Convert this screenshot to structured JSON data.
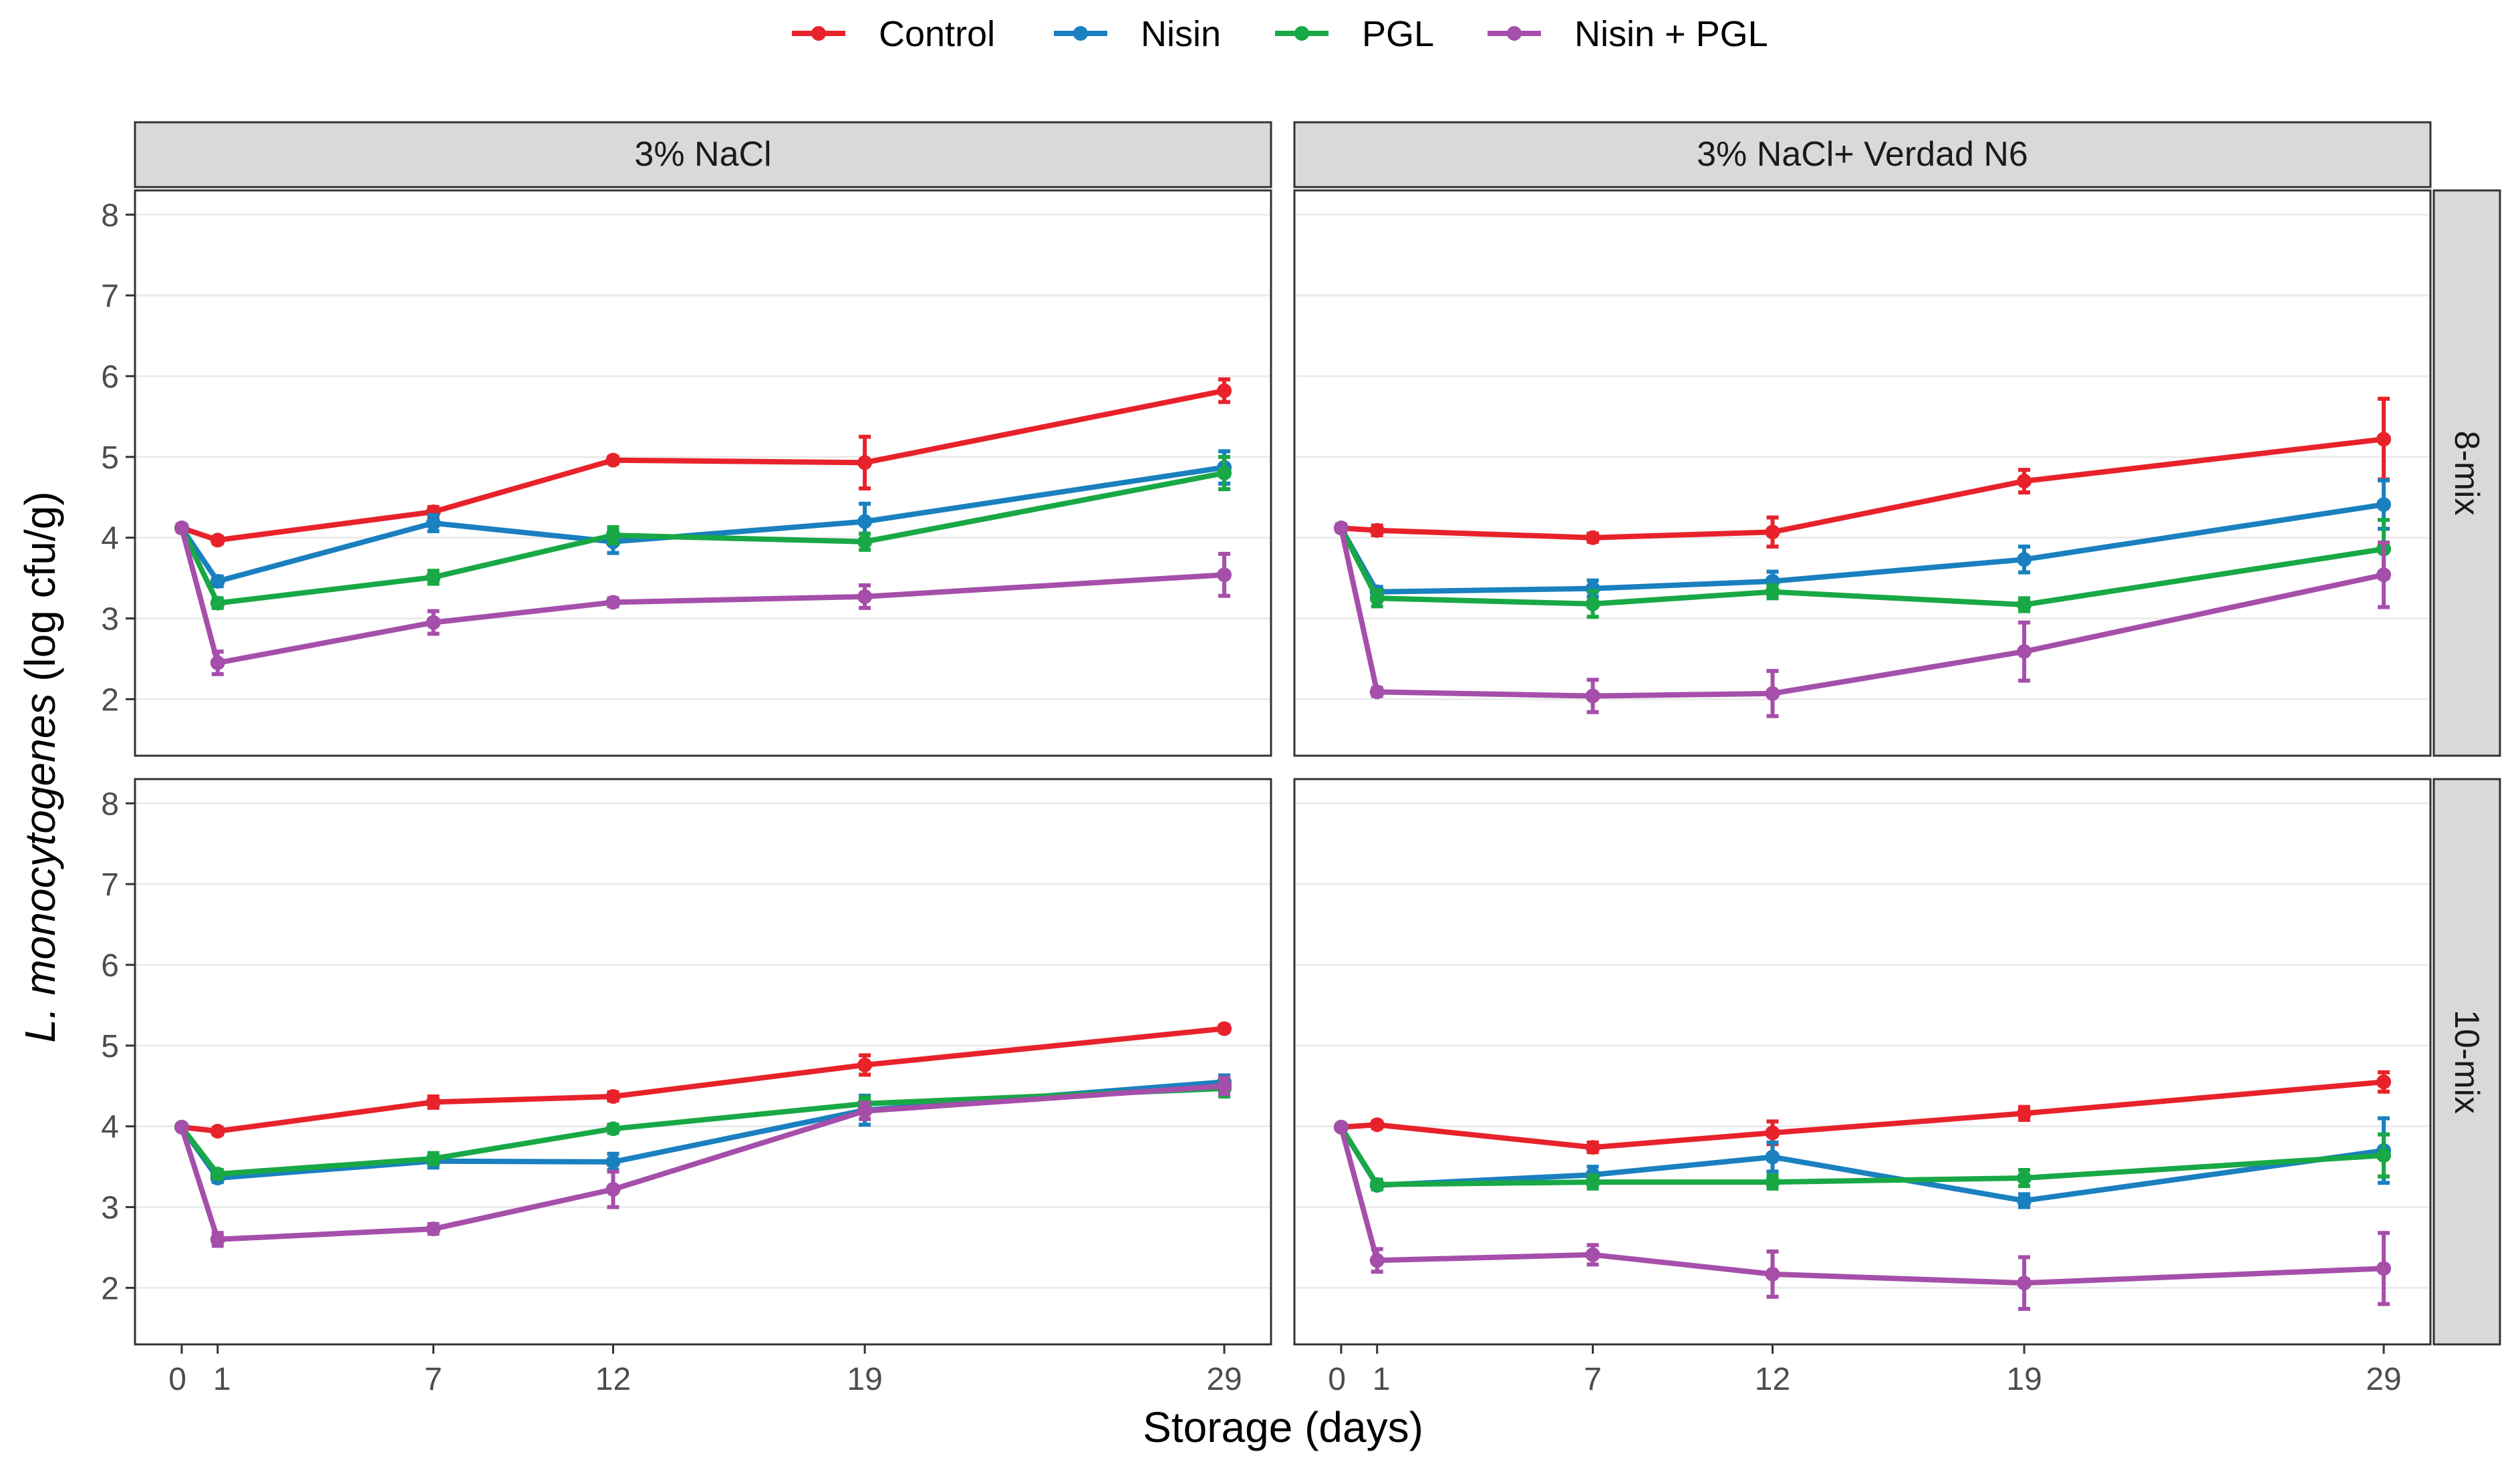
{
  "chart_data": {
    "type": "line",
    "xlabel": "Storage (days)",
    "ylabel_italic": "L. monocytogenes",
    "ylabel_rest": " (log cfu/g)",
    "x_ticks": [
      0,
      1,
      7,
      12,
      19,
      29
    ],
    "x_tick_labels": [
      "0",
      "1",
      "7",
      "12",
      "19",
      "29"
    ],
    "y_ticks": [
      2,
      3,
      4,
      5,
      6,
      7,
      8
    ],
    "y_tick_labels": [
      "2",
      "3",
      "4",
      "5",
      "6",
      "7",
      "8"
    ],
    "xlim": [
      -1.3,
      30.3
    ],
    "ylim": [
      1.3,
      8.3
    ],
    "legend_position": "top",
    "legend": [
      {
        "name": "Control",
        "color": "#e8222a"
      },
      {
        "name": "Nisin",
        "color": "#1a80bf"
      },
      {
        "name": "PGL",
        "color": "#18a845"
      },
      {
        "name": "Nisin + PGL",
        "color": "#a54faa"
      }
    ],
    "col_strips": [
      "3% NaCl",
      "3% NaCl+ Verdad N6"
    ],
    "row_strips": [
      "8-mix",
      "10-mix"
    ],
    "x": [
      0,
      1,
      7,
      12,
      19,
      29
    ],
    "panels": [
      {
        "col": "3% NaCl",
        "row": "8-mix",
        "series": [
          {
            "name": "Control",
            "values": [
              4.12,
              3.97,
              4.32,
              4.96,
              4.93,
              5.82
            ],
            "errors": [
              0.04,
              0.04,
              0.06,
              0.04,
              0.32,
              0.14
            ]
          },
          {
            "name": "Nisin",
            "values": [
              4.12,
              3.46,
              4.18,
              3.95,
              4.2,
              4.87
            ],
            "errors": [
              0.04,
              0.06,
              0.1,
              0.14,
              0.22,
              0.2
            ]
          },
          {
            "name": "PGL",
            "values": [
              4.12,
              3.19,
              3.51,
              4.03,
              3.95,
              4.8
            ],
            "errors": [
              0.04,
              0.06,
              0.08,
              0.1,
              0.1,
              0.2
            ]
          },
          {
            "name": "Nisin + PGL",
            "values": [
              4.12,
              2.45,
              2.95,
              3.2,
              3.27,
              3.54
            ],
            "errors": [
              0.04,
              0.14,
              0.14,
              0.05,
              0.14,
              0.26
            ]
          }
        ]
      },
      {
        "col": "3% NaCl+ Verdad N6",
        "row": "8-mix",
        "series": [
          {
            "name": "Control",
            "values": [
              4.12,
              4.09,
              4.0,
              4.07,
              4.7,
              5.22
            ],
            "errors": [
              0.04,
              0.06,
              0.05,
              0.18,
              0.14,
              0.5
            ]
          },
          {
            "name": "Nisin",
            "values": [
              4.12,
              3.33,
              3.37,
              3.46,
              3.73,
              4.41
            ],
            "errors": [
              0.04,
              0.06,
              0.1,
              0.12,
              0.16,
              0.3
            ]
          },
          {
            "name": "PGL",
            "values": [
              4.12,
              3.25,
              3.18,
              3.33,
              3.17,
              3.86
            ],
            "errors": [
              0.04,
              0.1,
              0.16,
              0.08,
              0.08,
              0.36
            ]
          },
          {
            "name": "Nisin + PGL",
            "values": [
              4.12,
              2.09,
              2.04,
              2.07,
              2.59,
              3.54
            ],
            "errors": [
              0.04,
              0.05,
              0.2,
              0.28,
              0.36,
              0.4
            ]
          }
        ]
      },
      {
        "col": "3% NaCl",
        "row": "10-mix",
        "series": [
          {
            "name": "Control",
            "values": [
              3.99,
              3.94,
              4.3,
              4.37,
              4.76,
              5.21
            ],
            "errors": [
              0.03,
              0.04,
              0.07,
              0.05,
              0.12,
              0.04
            ]
          },
          {
            "name": "Nisin",
            "values": [
              3.99,
              3.36,
              3.57,
              3.56,
              4.2,
              4.55
            ],
            "errors": [
              0.03,
              0.05,
              0.08,
              0.1,
              0.18,
              0.08
            ]
          },
          {
            "name": "PGL",
            "values": [
              3.99,
              3.41,
              3.6,
              3.97,
              4.28,
              4.47
            ],
            "errors": [
              0.03,
              0.05,
              0.07,
              0.05,
              0.08,
              0.1
            ]
          },
          {
            "name": "Nisin + PGL",
            "values": [
              3.99,
              2.6,
              2.73,
              3.22,
              4.19,
              4.5
            ],
            "errors": [
              0.03,
              0.08,
              0.06,
              0.22,
              0.1,
              0.1
            ]
          }
        ]
      },
      {
        "col": "3% NaCl+ Verdad N6",
        "row": "10-mix",
        "series": [
          {
            "name": "Control",
            "values": [
              3.99,
              4.02,
              3.74,
              3.92,
              4.16,
              4.55
            ],
            "errors": [
              0.03,
              0.04,
              0.06,
              0.14,
              0.08,
              0.12
            ]
          },
          {
            "name": "Nisin",
            "values": [
              3.99,
              3.27,
              3.4,
              3.62,
              3.08,
              3.7
            ],
            "errors": [
              0.03,
              0.05,
              0.1,
              0.18,
              0.08,
              0.4
            ]
          },
          {
            "name": "PGL",
            "values": [
              3.99,
              3.28,
              3.31,
              3.31,
              3.36,
              3.64
            ],
            "errors": [
              0.03,
              0.06,
              0.08,
              0.08,
              0.1,
              0.26
            ]
          },
          {
            "name": "Nisin + PGL",
            "values": [
              3.99,
              2.34,
              2.41,
              2.17,
              2.06,
              2.24
            ],
            "errors": [
              0.03,
              0.14,
              0.12,
              0.28,
              0.32,
              0.44
            ]
          }
        ]
      }
    ]
  }
}
